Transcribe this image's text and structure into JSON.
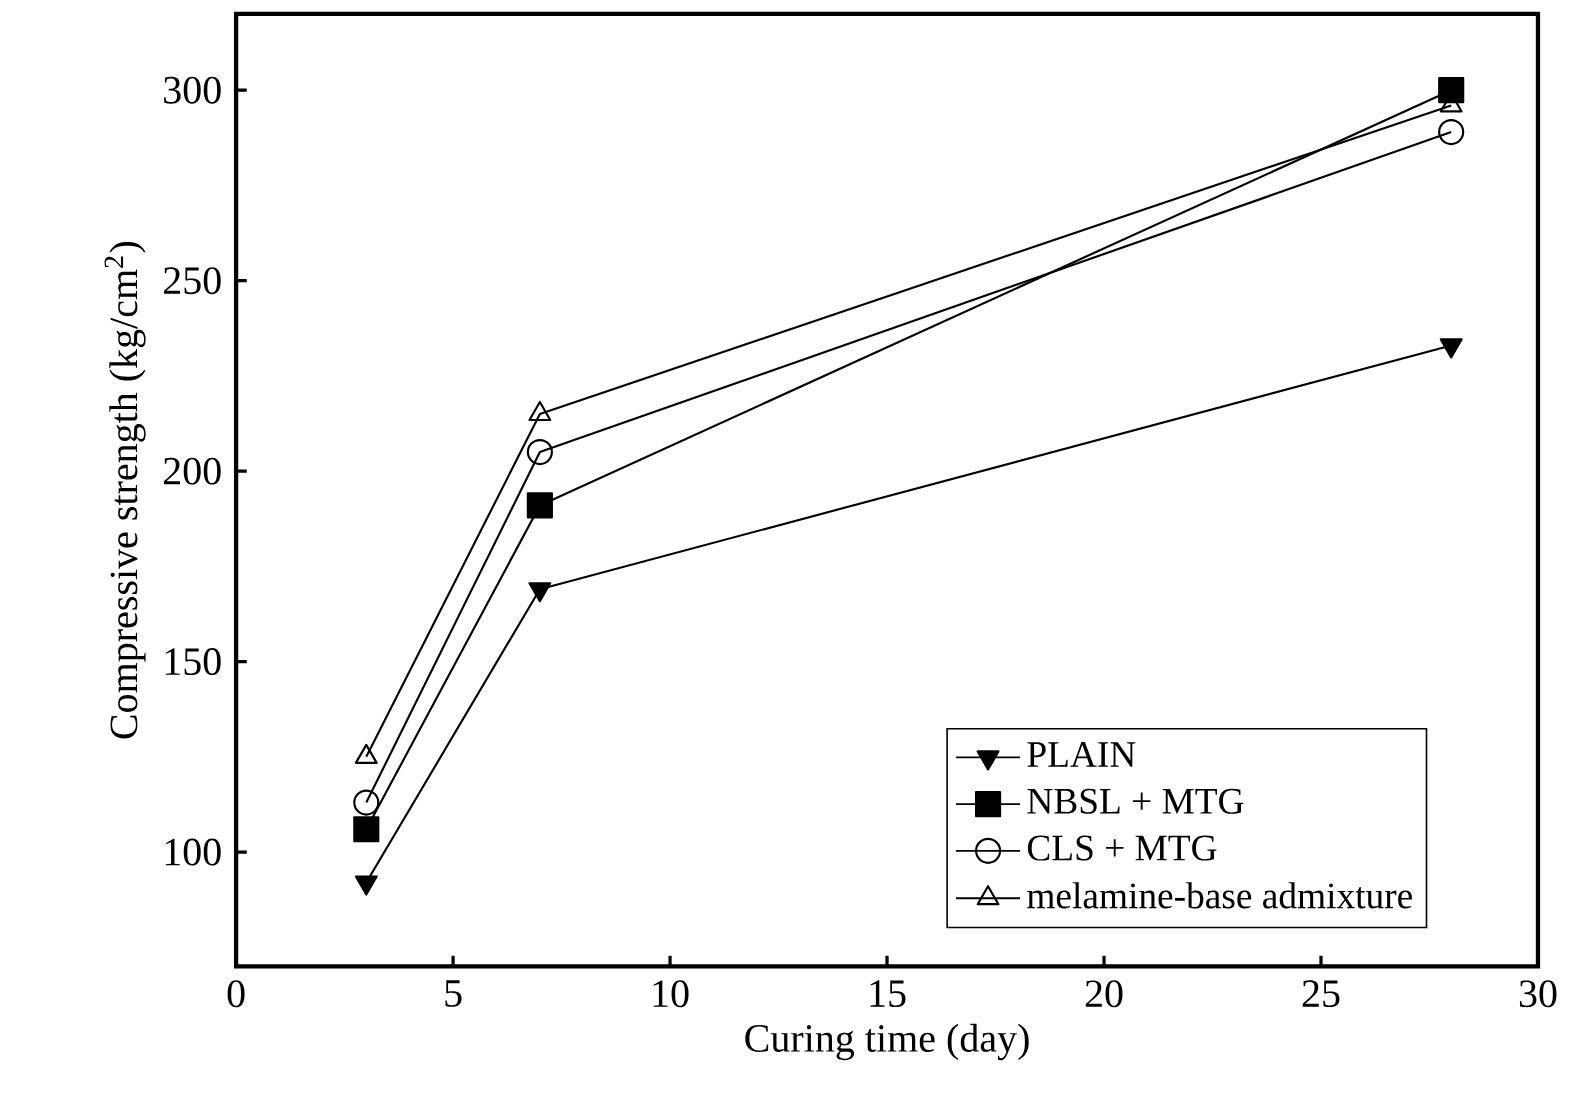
{
  "chart_data": {
    "type": "line",
    "xlabel": "Curing time (day)",
    "ylabel": "Compressive strength (kg/cm$^{2}$)",
    "x": [
      3,
      7,
      28
    ],
    "series": [
      {
        "name": "PLAIN",
        "color": "#000000",
        "marker": "triangle down filled",
        "values": [
          92,
          169,
          233
        ]
      },
      {
        "name": "NBSL + MTG",
        "color": "#000000",
        "marker": "square filled",
        "values": [
          106,
          191,
          300
        ]
      },
      {
        "name": "CLS + MTG",
        "color": "#000000",
        "marker": "circle open",
        "values": [
          113,
          205,
          289
        ]
      },
      {
        "name": "melamine-base admixture",
        "color": "#000000",
        "marker": "triangle open",
        "values": [
          125,
          215,
          296
        ]
      }
    ],
    "xlim": [
      0,
      30
    ],
    "xticks": [
      0,
      5,
      10,
      15,
      20,
      25,
      30
    ],
    "ylim": [
      70,
      320
    ],
    "yticks": [
      100,
      150,
      200,
      250,
      300
    ],
    "legend": "bottom right",
    "grid": false,
    "line_style": "solid"
  }
}
